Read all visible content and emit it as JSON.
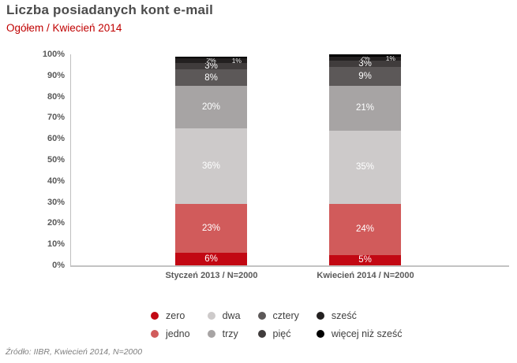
{
  "title": "Liczba posiadanych kont e-mail",
  "subtitle": "Ogółem / Kwiecień 2014",
  "source": "Źródło: IIBR, Kwiecień 2014, N=2000",
  "colors": {
    "title_text": "#4c4c4c",
    "subtitle_text": "#c00000",
    "axis_line": "#bfbfbf",
    "tick_text": "#595959"
  },
  "chart_data": {
    "type": "bar",
    "stacked": true,
    "normalized_to_100": true,
    "grid": false,
    "legend_position": "bottom",
    "ylim": [
      0,
      100
    ],
    "yticks": [
      "0%",
      "10%",
      "20%",
      "30%",
      "40%",
      "50%",
      "60%",
      "70%",
      "80%",
      "90%",
      "100%"
    ],
    "categories": [
      "Styczeń 2013 / N=2000",
      "Kwiecień 2014 / N=2000"
    ],
    "series": [
      {
        "name": "zero",
        "color": "#c20813",
        "values": [
          6,
          5
        ]
      },
      {
        "name": "jedno",
        "color": "#d15b5b",
        "values": [
          23,
          24
        ]
      },
      {
        "name": "dwa",
        "color": "#cdcaca",
        "values": [
          36,
          35
        ]
      },
      {
        "name": "trzy",
        "color": "#a7a4a4",
        "values": [
          20,
          21
        ]
      },
      {
        "name": "cztery",
        "color": "#5c5858",
        "values": [
          8,
          9
        ]
      },
      {
        "name": "pięć",
        "color": "#403c3c",
        "values": [
          3,
          3
        ]
      },
      {
        "name": "sześć",
        "color": "#232020",
        "values": [
          2,
          2
        ]
      },
      {
        "name": "więcej niż sześć",
        "color": "#000000",
        "values": [
          1,
          1
        ]
      }
    ]
  }
}
